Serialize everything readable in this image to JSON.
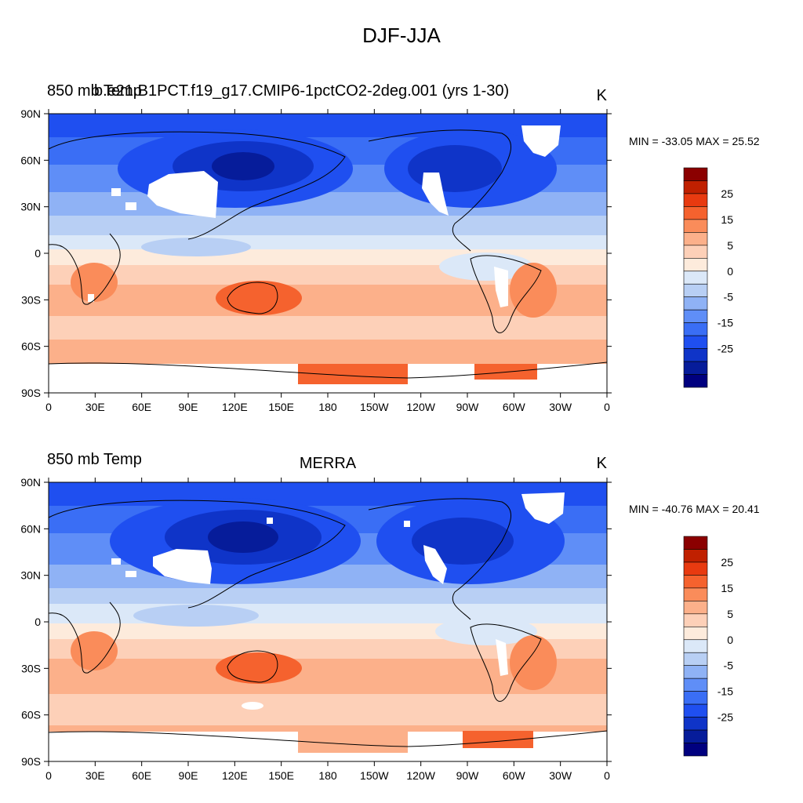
{
  "figure": {
    "title": "DJF-JJA"
  },
  "panels": [
    {
      "left_title": "850 mb Temp",
      "center_title": "b.e21.B1PCT.f19_g17.CMIP6-1pctCO2-2deg.001 (yrs 1-30)",
      "units": "K",
      "stats": "MIN = -33.05 MAX =  25.52"
    },
    {
      "left_title": "850 mb Temp",
      "center_title": "MERRA",
      "units": "K",
      "stats": "MIN = -40.76 MAX =  20.41"
    }
  ],
  "axes": {
    "lat_labels": [
      "90N",
      "60N",
      "30N",
      "0",
      "30S",
      "60S",
      "90S"
    ],
    "lon_labels": [
      "0",
      "30E",
      "60E",
      "90E",
      "120E",
      "150E",
      "180",
      "150W",
      "120W",
      "90W",
      "60W",
      "30W",
      "0"
    ]
  },
  "colorbar": {
    "labels": [
      "25",
      "15",
      "5",
      "0",
      "-5",
      "-15",
      "-25"
    ],
    "colors_top_to_bottom": [
      "#8b0000",
      "#c02000",
      "#e83a10",
      "#f5622e",
      "#fa8c5a",
      "#fcb08a",
      "#fdd0b8",
      "#fdebdc",
      "#dbe8f8",
      "#b8cff4",
      "#8fb2f5",
      "#5f8ef7",
      "#3a6ef5",
      "#1f4ff0",
      "#0f34c8",
      "#061c9a",
      "#00007f"
    ]
  }
}
